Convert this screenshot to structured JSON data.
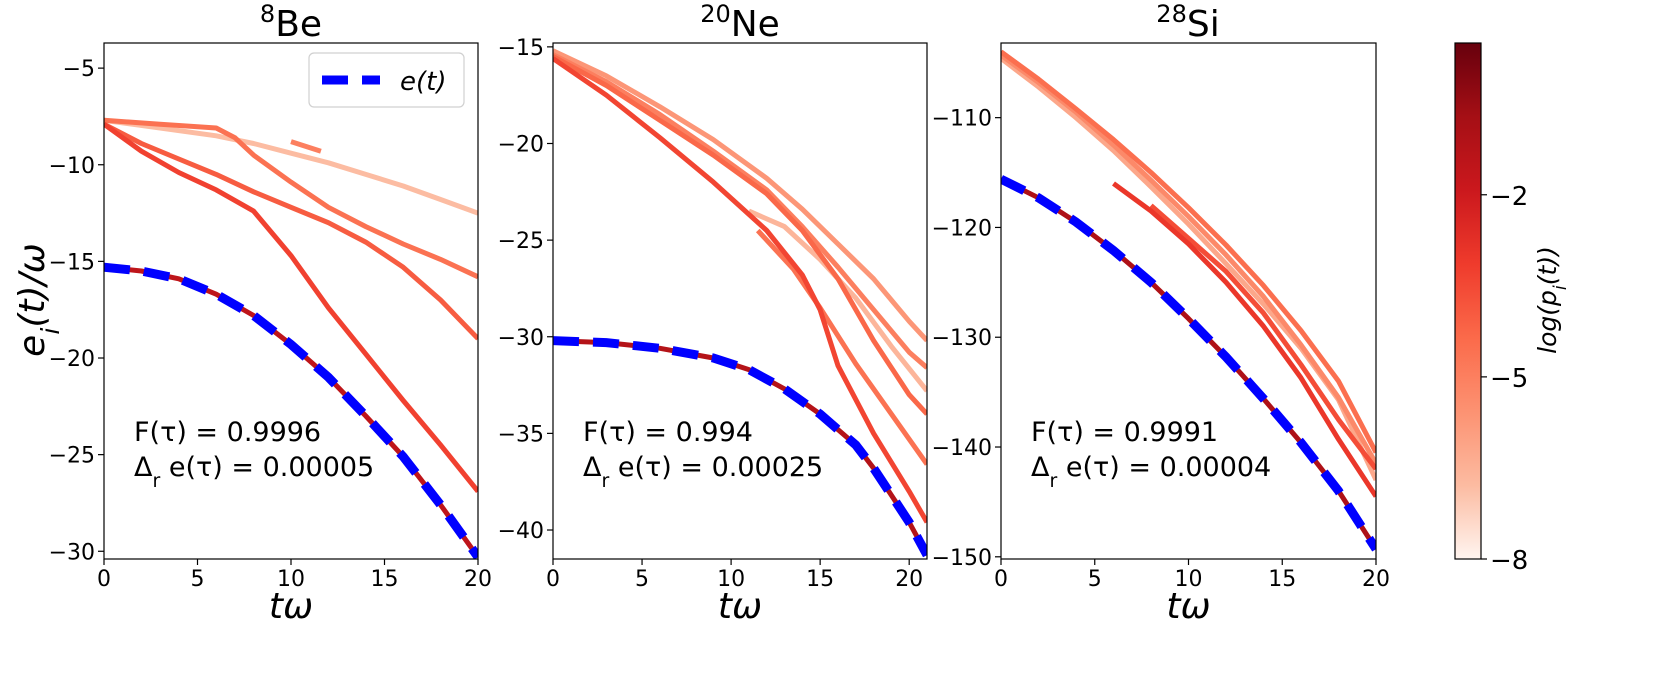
{
  "figure": {
    "ylabel_main": "e_i(t)/ω",
    "legend_label": "e(t)",
    "colorbar": {
      "label": "log(p_i(t))",
      "ticks": [
        -2,
        -5,
        -8
      ],
      "range": [
        -8,
        0.5
      ],
      "colormap": [
        "#fff5f0",
        "#fcbba1",
        "#fc9272",
        "#fb6a4a",
        "#ef3b2c",
        "#cb181d",
        "#a50f15",
        "#67000d"
      ]
    }
  },
  "chart_data": [
    {
      "type": "line",
      "title_sup": "8",
      "title": "Be",
      "xlabel": "tω",
      "ylabel": "e_i(t)/ω",
      "xlim": [
        0,
        20
      ],
      "ylim": [
        -30.4,
        -3.7
      ],
      "xticks": [
        0,
        5,
        10,
        15,
        20
      ],
      "yticks": [
        -30,
        -25,
        -20,
        -15,
        -10,
        -5
      ],
      "annotations": [
        "F(τ) = 0.9996",
        "Δ_r e(τ) = 0.00005"
      ],
      "legend": "top-right",
      "ground": [
        [
          0,
          -15.3
        ],
        [
          2,
          -15.5
        ],
        [
          4,
          -15.9
        ],
        [
          6,
          -16.7
        ],
        [
          8,
          -17.8
        ],
        [
          10,
          -19.3
        ],
        [
          12,
          -21.0
        ],
        [
          14,
          -23.0
        ],
        [
          16,
          -25.1
        ],
        [
          18,
          -27.6
        ],
        [
          20,
          -30.3
        ]
      ],
      "series": [
        {
          "logp": -1.5,
          "points": [
            [
              0,
              -15.3
            ],
            [
              2,
              -15.5
            ],
            [
              4,
              -15.9
            ],
            [
              6,
              -16.7
            ],
            [
              8,
              -17.8
            ],
            [
              10,
              -19.3
            ],
            [
              12,
              -21.0
            ],
            [
              14,
              -23.0
            ],
            [
              16,
              -25.1
            ],
            [
              18,
              -27.6
            ],
            [
              20,
              -30.3
            ]
          ]
        },
        {
          "logp": -3.3,
          "points": [
            [
              0,
              -7.9
            ],
            [
              2,
              -9.3
            ],
            [
              4,
              -10.4
            ],
            [
              6,
              -11.3
            ],
            [
              8,
              -12.4
            ],
            [
              10,
              -14.7
            ],
            [
              12,
              -17.4
            ],
            [
              14,
              -19.8
            ],
            [
              16,
              -22.2
            ],
            [
              18,
              -24.5
            ],
            [
              20,
              -26.9
            ]
          ]
        },
        {
          "logp": -4.0,
          "points": [
            [
              0,
              -7.9
            ],
            [
              2,
              -8.9
            ],
            [
              4,
              -9.7
            ],
            [
              6,
              -10.5
            ],
            [
              8,
              -11.4
            ],
            [
              10,
              -12.2
            ],
            [
              12,
              -13.0
            ],
            [
              14,
              -14.0
            ],
            [
              16,
              -15.3
            ],
            [
              18,
              -17.0
            ],
            [
              20,
              -19.0
            ]
          ]
        },
        {
          "logp": -4.6,
          "points": [
            [
              0,
              -7.7
            ],
            [
              3,
              -7.9
            ],
            [
              6,
              -8.1
            ],
            [
              7,
              -8.6
            ],
            [
              8,
              -9.5
            ],
            [
              10,
              -10.9
            ],
            [
              12,
              -12.2
            ],
            [
              14,
              -13.2
            ],
            [
              16,
              -14.1
            ],
            [
              18,
              -14.9
            ],
            [
              20,
              -15.8
            ]
          ]
        },
        {
          "logp": -6.8,
          "points": [
            [
              0,
              -7.7
            ],
            [
              3,
              -8.1
            ],
            [
              6,
              -8.5
            ],
            [
              8,
              -8.9
            ],
            [
              10,
              -9.4
            ],
            [
              12,
              -9.9
            ],
            [
              14,
              -10.5
            ],
            [
              16,
              -11.1
            ],
            [
              18,
              -11.8
            ],
            [
              20,
              -12.5
            ]
          ]
        },
        {
          "logp": -5.0,
          "points": [
            [
              10,
              -8.8
            ],
            [
              11.6,
              -9.3
            ]
          ]
        }
      ]
    },
    {
      "type": "line",
      "title_sup": "20",
      "title": "Ne",
      "xlabel": "tω",
      "ylabel": "",
      "xlim": [
        0,
        21
      ],
      "ylim": [
        -41.5,
        -14.8
      ],
      "xticks": [
        0,
        5,
        10,
        15,
        20
      ],
      "yticks": [
        -40,
        -35,
        -30,
        -25,
        -20,
        -15
      ],
      "annotations": [
        "F(τ) = 0.994",
        "Δ_r e(τ) = 0.00025"
      ],
      "ground": [
        [
          0,
          -30.2
        ],
        [
          3,
          -30.3
        ],
        [
          6,
          -30.6
        ],
        [
          9,
          -31.1
        ],
        [
          11,
          -31.7
        ],
        [
          13,
          -32.7
        ],
        [
          15,
          -34.0
        ],
        [
          17,
          -35.6
        ],
        [
          18,
          -36.8
        ],
        [
          19,
          -38.2
        ],
        [
          20,
          -39.6
        ],
        [
          21,
          -41.3
        ]
      ],
      "series": [
        {
          "logp": -1.2,
          "points": [
            [
              0,
              -30.2
            ],
            [
              3,
              -30.3
            ],
            [
              6,
              -30.6
            ],
            [
              9,
              -31.1
            ],
            [
              11,
              -31.7
            ],
            [
              13,
              -32.7
            ],
            [
              15,
              -34.0
            ],
            [
              17,
              -35.6
            ],
            [
              18,
              -36.8
            ],
            [
              19,
              -38.2
            ],
            [
              20,
              -39.6
            ],
            [
              21,
              -41.3
            ]
          ]
        },
        {
          "logp": -3.4,
          "points": [
            [
              0,
              -15.6
            ],
            [
              3,
              -17.5
            ],
            [
              6,
              -19.7
            ],
            [
              9,
              -22.0
            ],
            [
              12,
              -24.5
            ],
            [
              14,
              -26.8
            ],
            [
              15,
              -28.6
            ],
            [
              16,
              -31.5
            ],
            [
              18,
              -35.0
            ],
            [
              20,
              -38.0
            ],
            [
              21,
              -39.6
            ]
          ]
        },
        {
          "logp": -4.3,
          "points": [
            [
              0,
              -15.5
            ],
            [
              3,
              -17.0
            ],
            [
              6,
              -18.8
            ],
            [
              9,
              -20.6
            ],
            [
              12,
              -22.6
            ],
            [
              14,
              -24.5
            ],
            [
              16,
              -27.0
            ],
            [
              18,
              -30.2
            ],
            [
              20,
              -33.0
            ],
            [
              21,
              -34.0
            ]
          ]
        },
        {
          "logp": -5.0,
          "points": [
            [
              0,
              -15.4
            ],
            [
              3,
              -16.8
            ],
            [
              6,
              -18.5
            ],
            [
              9,
              -20.4
            ],
            [
              12,
              -22.4
            ],
            [
              14,
              -24.3
            ],
            [
              16,
              -26.4
            ],
            [
              18,
              -28.6
            ],
            [
              20,
              -30.8
            ],
            [
              21,
              -31.6
            ]
          ]
        },
        {
          "logp": -5.7,
          "points": [
            [
              0,
              -15.2
            ],
            [
              3,
              -16.5
            ],
            [
              6,
              -18.1
            ],
            [
              9,
              -19.8
            ],
            [
              12,
              -21.8
            ],
            [
              14,
              -23.4
            ],
            [
              16,
              -25.2
            ],
            [
              18,
              -27.0
            ],
            [
              20,
              -29.2
            ],
            [
              21,
              -30.2
            ]
          ]
        },
        {
          "logp": -4.6,
          "points": [
            [
              11.5,
              -24.5
            ],
            [
              13.5,
              -26.5
            ],
            [
              15,
              -28.5
            ],
            [
              17,
              -31.4
            ],
            [
              19,
              -34.0
            ],
            [
              21,
              -36.6
            ]
          ]
        },
        {
          "logp": -6.6,
          "points": [
            [
              11,
              -23.5
            ],
            [
              13,
              -24.3
            ],
            [
              15,
              -26.0
            ],
            [
              17,
              -28.0
            ],
            [
              19,
              -30.5
            ],
            [
              21,
              -32.8
            ]
          ]
        }
      ]
    },
    {
      "type": "line",
      "title_sup": "28",
      "title": "Si",
      "xlabel": "tω",
      "ylabel": "",
      "xlim": [
        0,
        20
      ],
      "ylim": [
        -150.2,
        -103.2
      ],
      "xticks": [
        0,
        5,
        10,
        15,
        20
      ],
      "yticks": [
        -150,
        -140,
        -130,
        -120,
        -110
      ],
      "annotations": [
        "F(τ) = 0.9991",
        "Δ_r e(τ) = 0.00004"
      ],
      "ground": [
        [
          0,
          -115.6
        ],
        [
          2,
          -117.3
        ],
        [
          4,
          -119.5
        ],
        [
          6,
          -122.1
        ],
        [
          8,
          -125.0
        ],
        [
          10,
          -128.3
        ],
        [
          12,
          -131.8
        ],
        [
          14,
          -135.6
        ],
        [
          16,
          -139.6
        ],
        [
          18,
          -144.0
        ],
        [
          20,
          -149.3
        ]
      ],
      "series": [
        {
          "logp": -1.0,
          "points": [
            [
              0,
              -115.6
            ],
            [
              2,
              -117.3
            ],
            [
              4,
              -119.5
            ],
            [
              6,
              -122.1
            ],
            [
              8,
              -125.0
            ],
            [
              10,
              -128.3
            ],
            [
              12,
              -131.8
            ],
            [
              14,
              -135.6
            ],
            [
              16,
              -139.6
            ],
            [
              18,
              -144.0
            ],
            [
              20,
              -149.3
            ]
          ]
        },
        {
          "logp": -3.0,
          "points": [
            [
              6,
              -116.0
            ],
            [
              8,
              -118.5
            ],
            [
              10,
              -121.5
            ],
            [
              12,
              -125.0
            ],
            [
              14,
              -129.0
            ],
            [
              16,
              -133.7
            ],
            [
              18,
              -139.3
            ],
            [
              20,
              -144.5
            ]
          ]
        },
        {
          "logp": -3.6,
          "points": [
            [
              8,
              -118.0
            ],
            [
              10,
              -121.0
            ],
            [
              12,
              -124.0
            ],
            [
              14,
              -127.8
            ],
            [
              16,
              -132.5
            ],
            [
              18,
              -137.5
            ],
            [
              20,
              -142.0
            ]
          ]
        },
        {
          "logp": -4.5,
          "points": [
            [
              0,
              -104.0
            ],
            [
              2,
              -106.5
            ],
            [
              4,
              -109.2
            ],
            [
              6,
              -112.0
            ],
            [
              8,
              -115.0
            ],
            [
              10,
              -118.2
            ],
            [
              12,
              -121.6
            ],
            [
              14,
              -125.3
            ],
            [
              16,
              -129.4
            ],
            [
              18,
              -134.0
            ],
            [
              20,
              -140.5
            ]
          ]
        },
        {
          "logp": -5.3,
          "points": [
            [
              0,
              -104.3
            ],
            [
              2,
              -106.8
            ],
            [
              4,
              -109.5
            ],
            [
              6,
              -112.5
            ],
            [
              8,
              -115.7
            ],
            [
              10,
              -119.0
            ],
            [
              12,
              -122.5
            ],
            [
              14,
              -126.3
            ],
            [
              16,
              -130.7
            ],
            [
              18,
              -135.5
            ],
            [
              20,
              -141.5
            ]
          ]
        },
        {
          "logp": -6.2,
          "points": [
            [
              0,
              -104.6
            ],
            [
              2,
              -107.2
            ],
            [
              4,
              -110.0
            ],
            [
              6,
              -113.0
            ],
            [
              8,
              -116.3
            ],
            [
              10,
              -119.7
            ],
            [
              12,
              -123.3
            ],
            [
              14,
              -127.0
            ],
            [
              16,
              -131.0
            ],
            [
              18,
              -135.7
            ],
            [
              20,
              -143.0
            ]
          ]
        }
      ]
    }
  ]
}
